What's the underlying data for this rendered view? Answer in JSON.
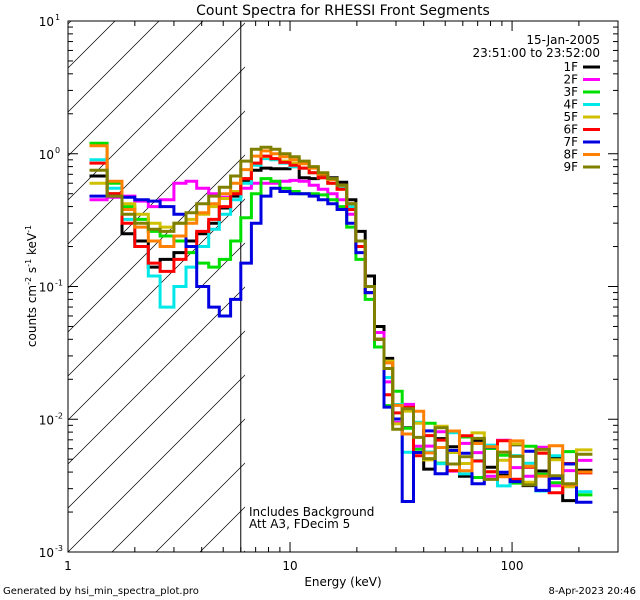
{
  "chart_data": {
    "type": "line",
    "title": "Count Spectra for RHESSI Front Segments",
    "xlabel": "Energy (keV)",
    "ylabel_parts": [
      "counts cm",
      "-2",
      " s",
      "-1",
      " keV",
      "-1"
    ],
    "xscale": "log",
    "yscale": "log",
    "xlim": [
      1,
      300
    ],
    "ylim": [
      0.001,
      10
    ],
    "x_tick_labels": [
      {
        "value": 1,
        "label": "1"
      },
      {
        "value": 10,
        "label": "10"
      },
      {
        "value": 100,
        "label": "100"
      }
    ],
    "y_tick_labels": [
      {
        "value": 0.001,
        "mant": "10",
        "exp": "-3"
      },
      {
        "value": 0.01,
        "mant": "10",
        "exp": "-2"
      },
      {
        "value": 0.1,
        "mant": "10",
        "exp": "-1"
      },
      {
        "value": 1,
        "mant": "10",
        "exp": "0"
      },
      {
        "value": 10,
        "mant": "10",
        "exp": "1"
      }
    ],
    "date_label": "15-Jan-2005",
    "time_range_label": "23:51:00 to 23:52:00",
    "attenuator_shaded_below_kev": 6,
    "annotations": [
      "Includes Background",
      "Att A3, FDecim  5"
    ],
    "footer_left": "Generated by hsi_min_spectra_plot.pro",
    "footer_right": "8-Apr-2023 20:46",
    "series": [
      {
        "name": "1F",
        "color": "#000000",
        "values": [
          0.68,
          0.5,
          0.25,
          0.22,
          0.14,
          0.16,
          0.18,
          0.22,
          0.25,
          0.3,
          0.39,
          0.48,
          0.62,
          0.75,
          0.78,
          0.77,
          0.77,
          0.8,
          0.66,
          0.65,
          0.68,
          0.66,
          0.61,
          0.45,
          0.26,
          0.12,
          0.05,
          0.02,
          0.012,
          0.009,
          0.007,
          0.006,
          0.006,
          0.0055,
          0.0052,
          0.005,
          0.0048,
          0.0046,
          0.0045,
          0.0042,
          0.004,
          0.004,
          0.0035,
          0.0033
        ]
      },
      {
        "name": "2F",
        "color": "#ff00ff",
        "values": [
          0.45,
          0.47,
          0.48,
          0.44,
          0.4,
          0.45,
          0.6,
          0.62,
          0.55,
          0.5,
          0.47,
          0.5,
          0.55,
          0.6,
          0.6,
          0.6,
          0.62,
          0.63,
          0.62,
          0.58,
          0.54,
          0.5,
          0.45,
          0.35,
          0.2,
          0.1,
          0.045,
          0.02,
          0.012,
          0.009,
          0.008,
          0.0065,
          0.006,
          0.0058,
          0.0055,
          0.005,
          0.0052,
          0.005,
          0.0048,
          0.0045,
          0.0043,
          0.0042,
          0.004,
          0.0038
        ]
      },
      {
        "name": "3F",
        "color": "#00e000",
        "values": [
          1.2,
          0.6,
          0.4,
          0.32,
          0.26,
          0.24,
          0.22,
          0.18,
          0.15,
          0.14,
          0.16,
          0.22,
          0.33,
          0.5,
          0.65,
          0.62,
          0.55,
          0.52,
          0.5,
          0.5,
          0.49,
          0.45,
          0.4,
          0.28,
          0.16,
          0.08,
          0.035,
          0.018,
          0.012,
          0.009,
          0.0075,
          0.0065,
          0.006,
          0.0058,
          0.0055,
          0.0052,
          0.005,
          0.0048,
          0.0046,
          0.0045,
          0.0043,
          0.004,
          0.004,
          0.0036
        ]
      },
      {
        "name": "4F",
        "color": "#00e8e8",
        "values": [
          0.9,
          0.55,
          0.32,
          0.2,
          0.12,
          0.07,
          0.1,
          0.14,
          0.2,
          0.27,
          0.35,
          0.45,
          0.6,
          0.82,
          0.92,
          0.9,
          0.85,
          0.8,
          0.78,
          0.72,
          0.66,
          0.6,
          0.55,
          0.4,
          0.22,
          0.1,
          0.04,
          0.018,
          0.011,
          0.008,
          0.007,
          0.006,
          0.0058,
          0.0055,
          0.005,
          0.005,
          0.0048,
          0.0045,
          0.0044,
          0.0042,
          0.004,
          0.0038,
          0.0036,
          0.0034
        ]
      },
      {
        "name": "5F",
        "color": "#d0c000",
        "values": [
          0.6,
          0.5,
          0.42,
          0.35,
          0.3,
          0.28,
          0.3,
          0.32,
          0.35,
          0.4,
          0.46,
          0.52,
          0.65,
          0.85,
          0.95,
          0.92,
          0.88,
          0.85,
          0.78,
          0.72,
          0.66,
          0.6,
          0.54,
          0.38,
          0.2,
          0.09,
          0.04,
          0.02,
          0.013,
          0.01,
          0.008,
          0.007,
          0.0065,
          0.006,
          0.0058,
          0.0055,
          0.0052,
          0.005,
          0.0049,
          0.0048,
          0.0046,
          0.0045,
          0.0043,
          0.0042
        ]
      },
      {
        "name": "6F",
        "color": "#ff0000",
        "values": [
          0.85,
          0.5,
          0.3,
          0.2,
          0.15,
          0.13,
          0.16,
          0.2,
          0.26,
          0.32,
          0.4,
          0.5,
          0.65,
          0.85,
          0.96,
          0.92,
          0.86,
          0.82,
          0.78,
          0.72,
          0.66,
          0.6,
          0.54,
          0.38,
          0.2,
          0.09,
          0.04,
          0.019,
          0.012,
          0.009,
          0.0075,
          0.0065,
          0.006,
          0.0058,
          0.0055,
          0.0052,
          0.005,
          0.0048,
          0.0046,
          0.0044,
          0.0042,
          0.004,
          0.0038,
          0.0036
        ]
      },
      {
        "name": "7F",
        "color": "#0000e0",
        "values": [
          0.48,
          0.48,
          0.47,
          0.45,
          0.44,
          0.4,
          0.35,
          0.2,
          0.1,
          0.07,
          0.06,
          0.08,
          0.15,
          0.3,
          0.48,
          0.55,
          0.52,
          0.5,
          0.5,
          0.48,
          0.45,
          0.42,
          0.38,
          0.3,
          0.18,
          0.09,
          0.04,
          0.016,
          0.007,
          0.003,
          0.006,
          0.006,
          0.0055,
          0.005,
          0.0048,
          0.0046,
          0.0045,
          0.0043,
          0.0042,
          0.004,
          0.0038,
          0.0036,
          0.0035,
          0.0034
        ]
      },
      {
        "name": "8F",
        "color": "#ff8000",
        "values": [
          1.15,
          0.62,
          0.38,
          0.28,
          0.22,
          0.2,
          0.24,
          0.3,
          0.36,
          0.42,
          0.5,
          0.6,
          0.76,
          0.96,
          1.05,
          1.0,
          0.95,
          0.9,
          0.84,
          0.78,
          0.7,
          0.64,
          0.58,
          0.42,
          0.22,
          0.1,
          0.04,
          0.02,
          0.013,
          0.01,
          0.008,
          0.007,
          0.0065,
          0.006,
          0.0058,
          0.0056,
          0.0054,
          0.0052,
          0.005,
          0.0048,
          0.0046,
          0.0044,
          0.0042,
          0.004
        ]
      },
      {
        "name": "9F",
        "color": "#808000",
        "values": [
          0.75,
          0.48,
          0.35,
          0.3,
          0.27,
          0.26,
          0.3,
          0.36,
          0.42,
          0.48,
          0.56,
          0.68,
          0.88,
          1.08,
          1.12,
          1.08,
          1.0,
          0.95,
          0.88,
          0.8,
          0.72,
          0.65,
          0.58,
          0.42,
          0.22,
          0.1,
          0.04,
          0.02,
          0.012,
          0.009,
          0.0075,
          0.0065,
          0.006,
          0.0058,
          0.0055,
          0.0053,
          0.005,
          0.0048,
          0.0046,
          0.0045,
          0.0043,
          0.0041,
          0.004,
          0.0038
        ]
      }
    ],
    "energy_bin_edges": [
      1.25,
      1.5,
      1.75,
      2.0,
      2.3,
      2.6,
      3.0,
      3.4,
      3.8,
      4.3,
      4.8,
      5.4,
      6.0,
      6.7,
      7.4,
      8.2,
      9.0,
      10.0,
      11.0,
      12.2,
      13.4,
      14.8,
      16.3,
      18.0,
      19.8,
      21.8,
      24.0,
      26.5,
      29.0,
      32.0,
      36.0,
      40.0,
      45.0,
      51.0,
      58.0,
      66.0,
      75.0,
      86.0,
      98.0,
      112.0,
      128.0,
      147.0,
      169.0,
      195.0,
      230.0
    ]
  }
}
